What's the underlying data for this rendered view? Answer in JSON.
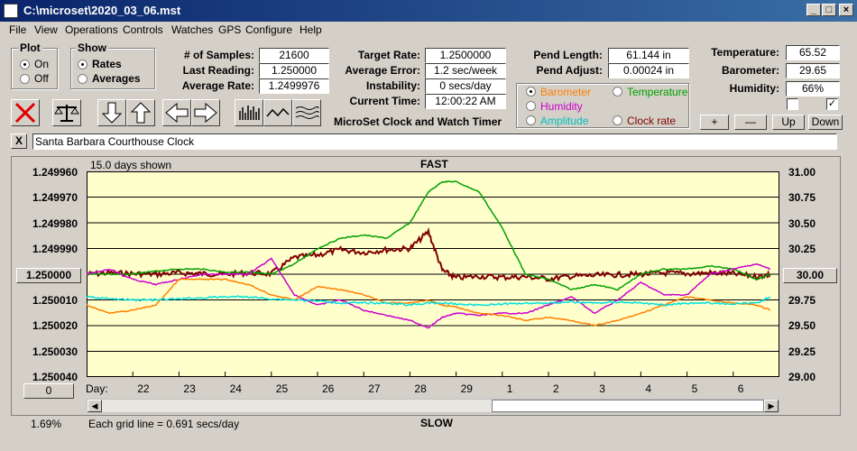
{
  "window": {
    "title": "C:\\microset\\2020_03_06.mst"
  },
  "menu": [
    "File",
    "View",
    "Operations",
    "Controls",
    "Watches",
    "GPS",
    "Configure",
    "Help"
  ],
  "plot": {
    "title": "Plot",
    "on": "On",
    "off": "Off"
  },
  "show": {
    "title": "Show",
    "rates": "Rates",
    "averages": "Averages"
  },
  "stats": {
    "samples_label": "# of Samples:",
    "samples": "21600",
    "last_label": "Last Reading:",
    "last": "1.250000",
    "avg_rate_label": "Average Rate:",
    "avg_rate": "1.2499976",
    "target_label": "Target Rate:",
    "target": "1.2500000",
    "avg_err_label": "Average Error:",
    "avg_err": "1.2 sec/week",
    "instab_label": "Instability:",
    "instab": "0 secs/day",
    "time_label": "Current Time:",
    "time": "12:00:22 AM",
    "pend_len_label": "Pend Length:",
    "pend_len": "61.144 in",
    "pend_adj_label": "Pend Adjust:",
    "pend_adj": "0.00024 in",
    "temp_label": "Temperature:",
    "temp": "65.52",
    "baro_label": "Barometer:",
    "baro": "29.65",
    "hum_label": "Humidity:",
    "hum": "66%"
  },
  "app_caption": "MicroSet Clock and Watch Timer",
  "sensors": [
    {
      "label": "Barometer",
      "color": "#ff8000",
      "selected": true
    },
    {
      "label": "Temperature",
      "color": "#00a000",
      "selected": false
    },
    {
      "label": "Humidity",
      "color": "#cc00cc",
      "selected": false
    },
    {
      "label": "Amplitude",
      "color": "#00c0c0",
      "selected": false
    },
    {
      "label": "Clock rate",
      "color": "#800000",
      "selected": false
    }
  ],
  "buttons": {
    "plus": "+",
    "minus": "—",
    "up": "Up",
    "down": "Down",
    "close_x": "X",
    "zero": "0",
    "center": "1.250000",
    "right_center": "30.00"
  },
  "clock_name": "Santa Barbara Courthouse Clock",
  "chart_header": {
    "days_shown": "15.0 days shown",
    "fast": "FAST",
    "slow": "SLOW",
    "day_label": "Day:",
    "grid_note": "Each grid line = 0.691 secs/day",
    "pct": "1.69%"
  },
  "chart_data": {
    "type": "line",
    "y_left_ticks": [
      "1.249960",
      "1.249970",
      "1.249980",
      "1.249990",
      "1.250010",
      "1.250020",
      "1.250030",
      "1.250040"
    ],
    "y_right_ticks": [
      "31.00",
      "30.75",
      "30.50",
      "30.25",
      "29.75",
      "29.50",
      "29.25",
      "29.00"
    ],
    "x_ticks": [
      "22",
      "23",
      "24",
      "25",
      "26",
      "27",
      "28",
      "29",
      "1",
      "2",
      "3",
      "4",
      "5",
      "6"
    ],
    "x": [
      21.0,
      21.5,
      22.0,
      22.5,
      23.0,
      23.5,
      24.0,
      24.5,
      25.0,
      25.5,
      26.0,
      26.5,
      27.0,
      27.5,
      28.0,
      28.4,
      28.7,
      29.0,
      29.5,
      30.0,
      30.5,
      31.0,
      31.5,
      32.0,
      32.5,
      33.0,
      33.5,
      34.0,
      34.5,
      35.0,
      35.5,
      35.8
    ],
    "series": [
      {
        "name": "Clock rate",
        "color": "#800000",
        "axis": "left",
        "values": [
          1.25,
          1.2499995,
          1.2499998,
          1.25,
          1.2499995,
          1.2499998,
          1.25,
          1.2499995,
          1.2499998,
          1.2499935,
          1.2499925,
          1.2499905,
          1.2499915,
          1.2499905,
          1.24999,
          1.2499835,
          1.2499985,
          1.2500015,
          1.2500008,
          1.2500012,
          1.250001,
          1.2500018,
          1.2500008,
          1.2500005,
          1.2500002,
          1.25,
          1.2499995,
          1.2499998,
          1.2499995,
          1.2499998,
          1.250001,
          1.25
        ]
      },
      {
        "name": "Temperature",
        "color": "#00a000",
        "axis": "right",
        "values": [
          30.0,
          30.0,
          30.0,
          30.03,
          30.05,
          30.05,
          30.02,
          30.02,
          30.0,
          30.1,
          30.25,
          30.35,
          30.38,
          30.35,
          30.5,
          30.8,
          30.9,
          30.9,
          30.8,
          30.45,
          30.0,
          29.95,
          29.85,
          29.9,
          29.85,
          30.0,
          30.05,
          30.05,
          30.08,
          30.05,
          29.95,
          30.0
        ]
      },
      {
        "name": "Humidity",
        "color": "#cc00cc",
        "axis": "right",
        "values": [
          30.0,
          30.05,
          29.95,
          29.9,
          29.95,
          30.0,
          30.0,
          30.0,
          30.15,
          29.8,
          29.7,
          29.75,
          29.65,
          29.6,
          29.55,
          29.48,
          29.58,
          29.62,
          29.6,
          29.62,
          29.62,
          29.7,
          29.78,
          29.62,
          29.75,
          29.92,
          29.8,
          29.8,
          30.0,
          30.05,
          30.1,
          30.05
        ]
      },
      {
        "name": "Barometer",
        "color": "#ff8000",
        "axis": "right",
        "values": [
          29.7,
          29.62,
          29.65,
          29.7,
          29.95,
          29.95,
          29.95,
          29.9,
          29.8,
          29.75,
          29.88,
          29.85,
          29.8,
          29.72,
          29.72,
          29.75,
          29.7,
          29.68,
          29.62,
          29.6,
          29.55,
          29.58,
          29.55,
          29.5,
          29.55,
          29.62,
          29.7,
          29.78,
          29.75,
          29.72,
          29.7,
          29.65
        ]
      },
      {
        "name": "Amplitude",
        "color": "#00e0e0",
        "axis": "right",
        "values": [
          29.78,
          29.76,
          29.75,
          29.75,
          29.76,
          29.77,
          29.78,
          29.78,
          29.76,
          29.75,
          29.74,
          29.72,
          29.72,
          29.72,
          29.7,
          29.72,
          29.72,
          29.71,
          29.7,
          29.71,
          29.72,
          29.72,
          29.73,
          29.72,
          29.73,
          29.72,
          29.7,
          29.72,
          29.72,
          29.71,
          29.72,
          29.78
        ]
      }
    ]
  }
}
